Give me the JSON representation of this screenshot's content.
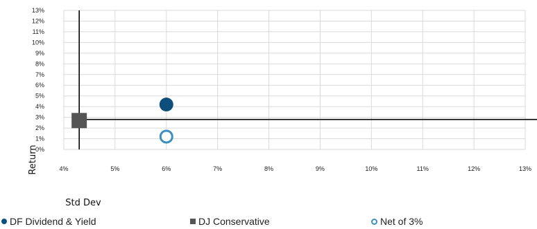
{
  "chart_data": {
    "type": "scatter",
    "xlabel": "Std Dev",
    "ylabel": "Return",
    "xlim": [
      4,
      13
    ],
    "ylim": [
      0,
      13
    ],
    "x_ticks": [
      "4%",
      "5%",
      "6%",
      "7%",
      "8%",
      "9%",
      "10%",
      "11%",
      "12%",
      "13%"
    ],
    "y_ticks": [
      "0%",
      "1%",
      "2%",
      "3%",
      "4%",
      "5%",
      "6%",
      "7%",
      "8%",
      "9%",
      "10%",
      "11%",
      "12%",
      "13%"
    ],
    "grid": true,
    "legend_position": "bottom",
    "series": [
      {
        "name": "DF Dividend & Yield",
        "marker": "filled-circle",
        "color": "#0d4f7c",
        "points": [
          {
            "x": 6.0,
            "y": 4.2
          }
        ]
      },
      {
        "name": "DJ Conservative",
        "marker": "square",
        "color": "#555555",
        "points": [
          {
            "x": 4.3,
            "y": 2.7
          }
        ]
      },
      {
        "name": "Net of 3%",
        "marker": "hollow-circle",
        "color": "#3a8fc0",
        "points": [
          {
            "x": 6.0,
            "y": 1.2
          }
        ]
      }
    ],
    "reference_lines": {
      "x": 4.3,
      "y": 2.8
    }
  }
}
